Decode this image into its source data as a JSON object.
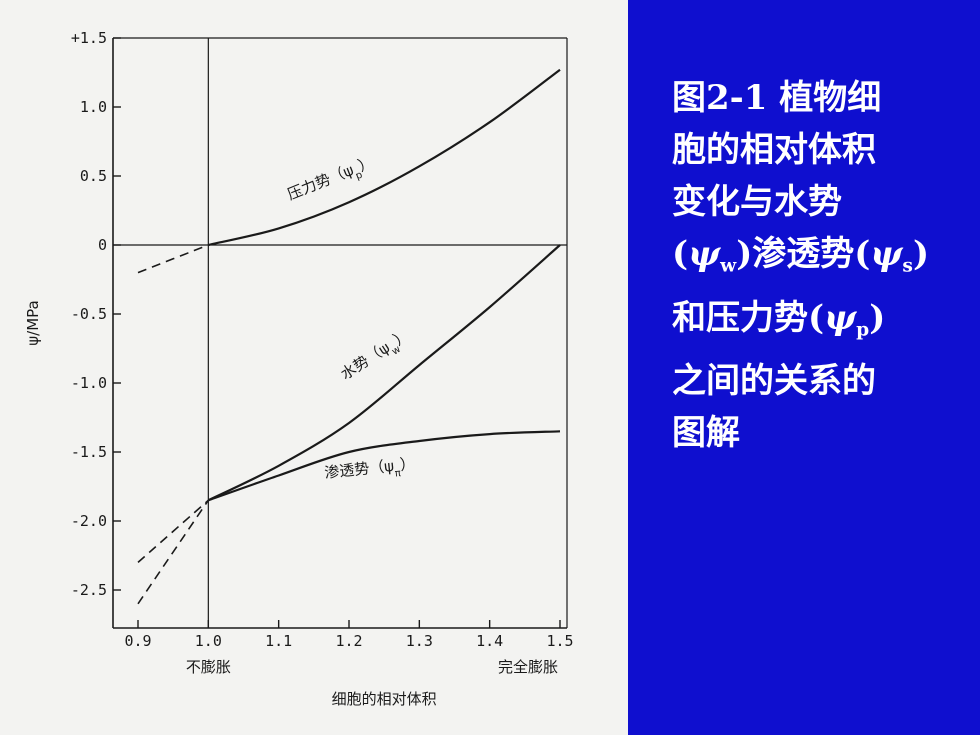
{
  "chart_data": {
    "type": "line",
    "xlabel": "细胞的相对体积",
    "ylabel": "ψ/MPa",
    "xlim": [
      0.9,
      1.5
    ],
    "ylim": [
      -2.7,
      1.5
    ],
    "x_ticks": [
      "0.9",
      "1.0",
      "1.1",
      "1.2",
      "1.3",
      "1.4",
      "1.5"
    ],
    "y_ticks": [
      {
        "value": 1.5,
        "label": "+1.5"
      },
      {
        "value": 1.0,
        "label": "1.0"
      },
      {
        "value": 0.5,
        "label": "0.5"
      },
      {
        "value": 0,
        "label": "0"
      },
      {
        "value": -0.5,
        "label": "-0.5"
      },
      {
        "value": -1.0,
        "label": "-1.0"
      },
      {
        "value": -1.5,
        "label": "-1.5"
      },
      {
        "value": -2.0,
        "label": "-2.0"
      },
      {
        "value": -2.5,
        "label": "-2.5"
      }
    ],
    "x_annotations": [
      {
        "x": 1.0,
        "text": "不膨胀"
      },
      {
        "x": 1.5,
        "text": "完全膨胀"
      }
    ],
    "series": [
      {
        "name": "压力势(ψp)",
        "x": [
          0.9,
          1.0,
          1.1,
          1.2,
          1.3,
          1.4,
          1.5
        ],
        "y": [
          -0.2,
          0.0,
          0.12,
          0.31,
          0.57,
          0.89,
          1.27
        ],
        "dashed_below_x": 1.0
      },
      {
        "name": "水势(ψw)",
        "x": [
          0.9,
          1.0,
          1.1,
          1.2,
          1.3,
          1.4,
          1.5
        ],
        "y": [
          -2.6,
          -1.85,
          -1.6,
          -1.29,
          -0.87,
          -0.45,
          0.0
        ],
        "dashed_below_x": 1.0
      },
      {
        "name": "渗透势(ψπ)",
        "x": [
          0.9,
          1.0,
          1.1,
          1.2,
          1.3,
          1.4,
          1.5
        ],
        "y": [
          -2.3,
          -1.85,
          -1.67,
          -1.5,
          -1.42,
          -1.37,
          -1.35
        ],
        "dashed_below_x": 1.0
      }
    ],
    "curve_labels": [
      {
        "text": "压力势（ψ",
        "sub": "p",
        "close": "）"
      },
      {
        "text": "水势（ψ",
        "sub": "w",
        "close": "）"
      },
      {
        "text": "渗透势（ψ",
        "sub": "π",
        "close": "）"
      }
    ],
    "grid": false
  },
  "caption": {
    "line1": "图2-1 植物细",
    "line2": "胞的相对体积",
    "line3": "变化与水势",
    "line4_a": "(",
    "line4_sym1": "ψ",
    "line4_sub1": "w",
    "line4_b": ")渗透势(",
    "line4_sym2": "ψ",
    "line4_sub2": "s",
    "line4_c": ")",
    "line5_a": "和压力势(",
    "line5_sym": "ψ",
    "line5_sub": "p",
    "line5_b": ")",
    "line6": "之间的关系的",
    "line7": "图解"
  },
  "colors": {
    "panel": "#0f0fcf",
    "caption_text": "#ffffff",
    "ink": "#1a1a1a",
    "paper": "#f3f3f1"
  }
}
